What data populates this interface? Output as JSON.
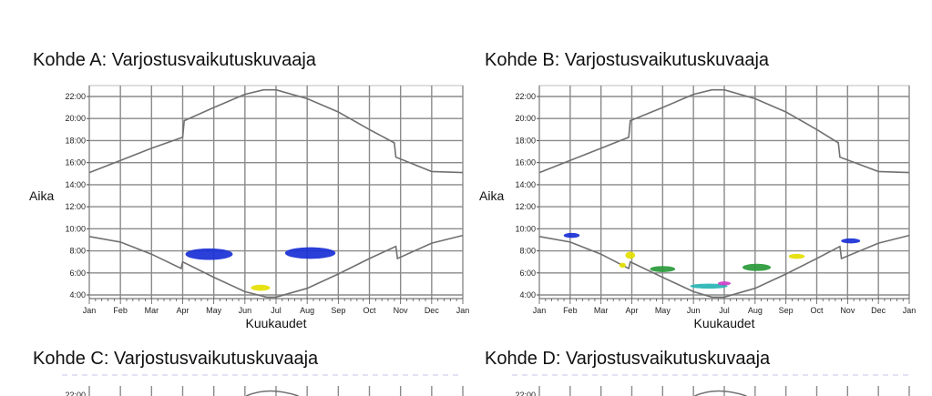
{
  "chart_data": [
    {
      "type": "area",
      "title": "Kohde A: Varjostusvaikutuskuvaaja",
      "xlabel": "Kuukaudet",
      "ylabel": "Aika",
      "x_tick_labels": [
        "Jan",
        "Feb",
        "Mar",
        "Apr",
        "May",
        "Jun",
        "Jul",
        "Aug",
        "Sep",
        "Oct",
        "Nov",
        "Dec",
        "Jan"
      ],
      "y_tick_labels": [
        "4:00",
        "6:00",
        "8:00",
        "10:00",
        "12:00",
        "14:00",
        "16:00",
        "18:00",
        "20:00",
        "22:00"
      ],
      "xlim": [
        0,
        12
      ],
      "ylim": [
        4,
        22
      ],
      "grid": true,
      "sunset_curve": [
        [
          0,
          15.1
        ],
        [
          1,
          16.2
        ],
        [
          2,
          17.3
        ],
        [
          3,
          18.3
        ],
        [
          3.05,
          19.8
        ],
        [
          4,
          21.0
        ],
        [
          5,
          22.2
        ],
        [
          5.6,
          22.6
        ],
        [
          6,
          22.6
        ],
        [
          7,
          21.8
        ],
        [
          8,
          20.6
        ],
        [
          9,
          19.0
        ],
        [
          9.8,
          17.8
        ],
        [
          9.85,
          16.5
        ],
        [
          11,
          15.2
        ],
        [
          12,
          15.1
        ]
      ],
      "sunrise_curve": [
        [
          0,
          9.3
        ],
        [
          1,
          8.8
        ],
        [
          2,
          7.7
        ],
        [
          2.95,
          6.4
        ],
        [
          3,
          7.0
        ],
        [
          4,
          5.6
        ],
        [
          5,
          4.3
        ],
        [
          5.7,
          3.8
        ],
        [
          6,
          3.8
        ],
        [
          7,
          4.6
        ],
        [
          8,
          5.9
        ],
        [
          9,
          7.3
        ],
        [
          9.85,
          8.4
        ],
        [
          9.9,
          7.3
        ],
        [
          11,
          8.7
        ],
        [
          12,
          9.4
        ]
      ],
      "shadow_areas": [
        {
          "color": "#1a2fd6",
          "x": [
            3.1,
            4.6
          ],
          "y": [
            7.2,
            8.2
          ]
        },
        {
          "color": "#1a2fd6",
          "x": [
            6.3,
            7.9
          ],
          "y": [
            7.3,
            8.3
          ]
        },
        {
          "color": "#e6e000",
          "x": [
            5.2,
            5.8
          ],
          "y": [
            4.4,
            4.9
          ]
        }
      ]
    },
    {
      "type": "area",
      "title": "Kohde B: Varjostusvaikutuskuvaaja",
      "xlabel": "Kuukaudet",
      "ylabel": "Aika",
      "x_tick_labels": [
        "Jan",
        "Feb",
        "Mar",
        "Apr",
        "May",
        "Jun",
        "Jul",
        "Aug",
        "Sep",
        "Oct",
        "Nov",
        "Dec",
        "Jan"
      ],
      "y_tick_labels": [
        "4:00",
        "6:00",
        "8:00",
        "10:00",
        "12:00",
        "14:00",
        "16:00",
        "18:00",
        "20:00",
        "22:00"
      ],
      "xlim": [
        0,
        12
      ],
      "ylim": [
        4,
        22
      ],
      "grid": true,
      "sunset_curve": [
        [
          0,
          15.1
        ],
        [
          1,
          16.2
        ],
        [
          2,
          17.3
        ],
        [
          2.9,
          18.3
        ],
        [
          2.95,
          19.8
        ],
        [
          4,
          21.0
        ],
        [
          5,
          22.2
        ],
        [
          5.6,
          22.6
        ],
        [
          6,
          22.6
        ],
        [
          7,
          21.8
        ],
        [
          8,
          20.6
        ],
        [
          9,
          19.0
        ],
        [
          9.7,
          17.8
        ],
        [
          9.75,
          16.5
        ],
        [
          11,
          15.2
        ],
        [
          12,
          15.1
        ]
      ],
      "sunrise_curve": [
        [
          0,
          9.3
        ],
        [
          1,
          8.8
        ],
        [
          2,
          7.7
        ],
        [
          2.9,
          6.4
        ],
        [
          2.95,
          7.0
        ],
        [
          4,
          5.6
        ],
        [
          5,
          4.3
        ],
        [
          5.6,
          3.8
        ],
        [
          6,
          3.8
        ],
        [
          7,
          4.6
        ],
        [
          8,
          5.9
        ],
        [
          9,
          7.3
        ],
        [
          9.75,
          8.4
        ],
        [
          9.8,
          7.3
        ],
        [
          11,
          8.7
        ],
        [
          12,
          9.4
        ]
      ],
      "shadow_areas": [
        {
          "color": "#1a2fd6",
          "x": [
            0.8,
            1.3
          ],
          "y": [
            9.2,
            9.6
          ]
        },
        {
          "color": "#e6e000",
          "x": [
            2.8,
            3.1
          ],
          "y": [
            7.3,
            7.9
          ]
        },
        {
          "color": "#e6e000",
          "x": [
            2.6,
            2.8
          ],
          "y": [
            6.5,
            6.9
          ]
        },
        {
          "color": "#2a9a3a",
          "x": [
            3.6,
            4.4
          ],
          "y": [
            6.1,
            6.6
          ]
        },
        {
          "color": "#29b5b5",
          "x": [
            4.9,
            6.1
          ],
          "y": [
            4.6,
            5.0
          ]
        },
        {
          "color": "#d03cc8",
          "x": [
            5.8,
            6.2
          ],
          "y": [
            4.9,
            5.2
          ]
        },
        {
          "color": "#2a9a3a",
          "x": [
            6.6,
            7.5
          ],
          "y": [
            6.2,
            6.8
          ]
        },
        {
          "color": "#e6e000",
          "x": [
            8.1,
            8.6
          ],
          "y": [
            7.3,
            7.7
          ]
        },
        {
          "color": "#1a2fd6",
          "x": [
            9.8,
            10.4
          ],
          "y": [
            8.7,
            9.1
          ]
        }
      ]
    }
  ],
  "lower_titles": {
    "c": "Kohde C: Varjostusvaikutuskuvaaja",
    "d": "Kohde D: Varjostusvaikutuskuvaaja"
  },
  "lower_y_tick": "22:00"
}
